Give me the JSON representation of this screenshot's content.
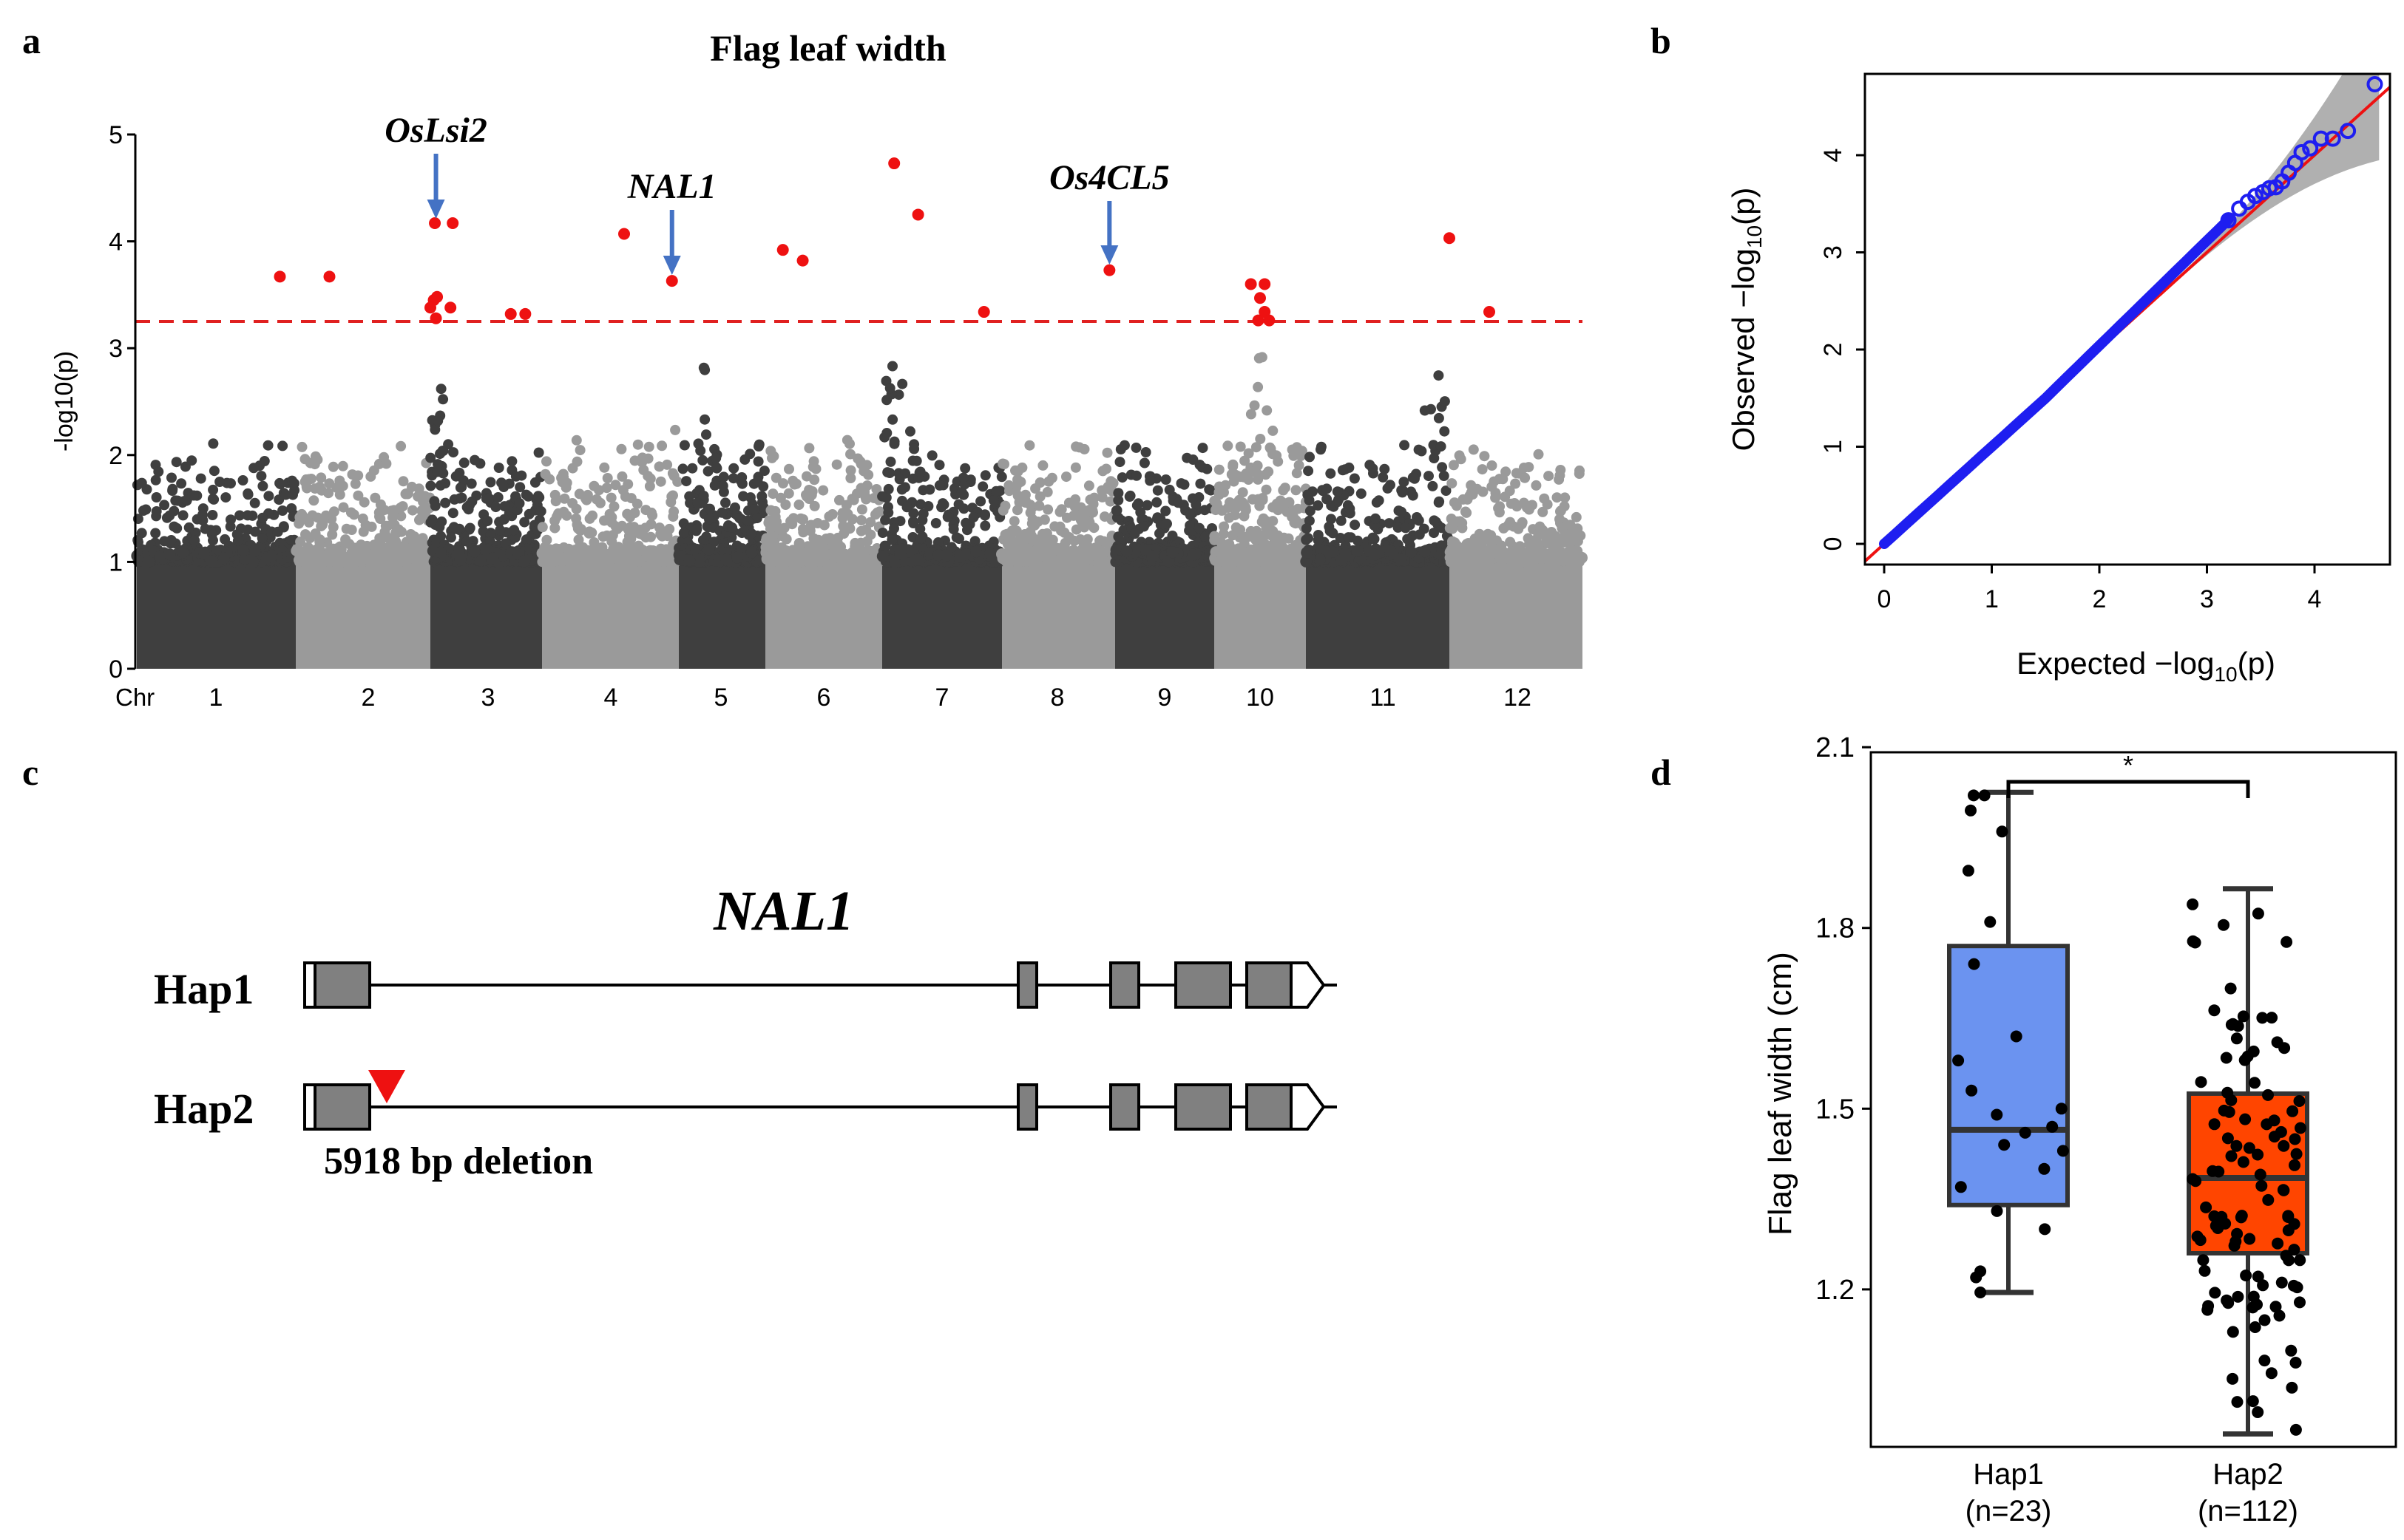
{
  "panel_letters": {
    "a": "a",
    "b": "b",
    "c": "c",
    "d": "d"
  },
  "chart_data": [
    {
      "panel": "a",
      "type": "scatter",
      "title": "Flag leaf width",
      "xlabel": "Chr",
      "ylabel": "-log10(p)",
      "ylim": [
        0,
        5
      ],
      "yticks": [
        "0",
        "1",
        "2",
        "3",
        "4",
        "5"
      ],
      "chromosomes": [
        "1",
        "2",
        "3",
        "4",
        "5",
        "6",
        "7",
        "8",
        "9",
        "10",
        "11",
        "12"
      ],
      "threshold": 3.25,
      "colors": {
        "dark": "#3f3f3f",
        "light": "#9a9a9a",
        "significant": "#ee1111",
        "threshold": "#e02020",
        "arrow": "#4472c4"
      },
      "annotations": [
        {
          "label": "OsLsi2",
          "chr": 3,
          "pos": 0.05
        },
        {
          "label": "NAL1",
          "chr": 4,
          "pos": 0.95
        },
        {
          "label": "Os4CL5",
          "chr": 8,
          "pos": 0.95
        }
      ],
      "significant_points": [
        {
          "chr": 1,
          "pos": 0.9,
          "y": 3.67
        },
        {
          "chr": 2,
          "pos": 0.25,
          "y": 3.67
        },
        {
          "chr": 3,
          "pos": 0.04,
          "y": 4.17
        },
        {
          "chr": 3,
          "pos": 0.2,
          "y": 4.17
        },
        {
          "chr": 3,
          "pos": 0.03,
          "y": 3.45
        },
        {
          "chr": 3,
          "pos": 0.06,
          "y": 3.48
        },
        {
          "chr": 3,
          "pos": 0.0,
          "y": 3.38
        },
        {
          "chr": 3,
          "pos": 0.18,
          "y": 3.38
        },
        {
          "chr": 3,
          "pos": 0.05,
          "y": 3.28
        },
        {
          "chr": 3,
          "pos": 0.72,
          "y": 3.32
        },
        {
          "chr": 3,
          "pos": 0.85,
          "y": 3.32
        },
        {
          "chr": 4,
          "pos": 0.6,
          "y": 4.07
        },
        {
          "chr": 4,
          "pos": 0.95,
          "y": 3.63
        },
        {
          "chr": 6,
          "pos": 0.15,
          "y": 3.92
        },
        {
          "chr": 6,
          "pos": 0.32,
          "y": 3.82
        },
        {
          "chr": 7,
          "pos": 0.1,
          "y": 4.73
        },
        {
          "chr": 7,
          "pos": 0.3,
          "y": 4.25
        },
        {
          "chr": 7,
          "pos": 0.85,
          "y": 3.34
        },
        {
          "chr": 8,
          "pos": 0.95,
          "y": 3.73
        },
        {
          "chr": 10,
          "pos": 0.4,
          "y": 3.6
        },
        {
          "chr": 10,
          "pos": 0.55,
          "y": 3.6
        },
        {
          "chr": 10,
          "pos": 0.5,
          "y": 3.47
        },
        {
          "chr": 10,
          "pos": 0.55,
          "y": 3.34
        },
        {
          "chr": 10,
          "pos": 0.48,
          "y": 3.26
        },
        {
          "chr": 10,
          "pos": 0.6,
          "y": 3.26
        },
        {
          "chr": 11,
          "pos": 1.0,
          "y": 4.03
        },
        {
          "chr": 12,
          "pos": 0.3,
          "y": 3.34
        }
      ]
    },
    {
      "panel": "b",
      "type": "scatter",
      "title": "",
      "xlabel_main": "Expected",
      "ylabel_main": "Observed",
      "axis_stat": "−log",
      "axis_sub": "10",
      "axis_arg": "(p)",
      "xlim": [
        0,
        4.6
      ],
      "ylim": [
        0,
        4.75
      ],
      "xticks": [
        "0",
        "1",
        "2",
        "3",
        "4"
      ],
      "yticks": [
        "0",
        "1",
        "2",
        "3",
        "4"
      ],
      "colors": {
        "points": "#1e1ef0",
        "line": "#ee1111",
        "band": "#b0b0b0"
      },
      "upper_points": [
        {
          "x": 3.2,
          "y": 3.33
        },
        {
          "x": 3.3,
          "y": 3.45
        },
        {
          "x": 3.38,
          "y": 3.52
        },
        {
          "x": 3.45,
          "y": 3.58
        },
        {
          "x": 3.52,
          "y": 3.62
        },
        {
          "x": 3.58,
          "y": 3.66
        },
        {
          "x": 3.64,
          "y": 3.67
        },
        {
          "x": 3.7,
          "y": 3.73
        },
        {
          "x": 3.76,
          "y": 3.82
        },
        {
          "x": 3.82,
          "y": 3.92
        },
        {
          "x": 3.88,
          "y": 4.03
        },
        {
          "x": 3.96,
          "y": 4.07
        },
        {
          "x": 4.06,
          "y": 4.17
        },
        {
          "x": 4.17,
          "y": 4.17
        },
        {
          "x": 4.31,
          "y": 4.25
        },
        {
          "x": 4.56,
          "y": 4.73
        }
      ]
    },
    {
      "panel": "d",
      "type": "box",
      "ylabel": "Flag leaf width (cm)",
      "ylim": [
        0.93,
        2.11
      ],
      "yticks": [
        "1.2",
        "1.5",
        "1.8",
        "2.1"
      ],
      "significance": "*",
      "groups": [
        {
          "name": "Hap1",
          "n_label": "(n=23)",
          "color": "#6b93f0",
          "whisker_low": 1.195,
          "q1": 1.34,
          "median": 1.465,
          "q3": 1.77,
          "whisker_high": 2.025,
          "n": 23
        },
        {
          "name": "Hap2",
          "n_label": "(n=112)",
          "color": "#ff4500",
          "whisker_low": 0.96,
          "q1": 1.26,
          "median": 1.385,
          "q3": 1.525,
          "whisker_high": 1.865,
          "n": 112
        }
      ],
      "hap1_points": [
        2.02,
        2.02,
        1.995,
        1.96,
        1.895,
        1.81,
        1.74,
        1.62,
        1.58,
        1.53,
        1.5,
        1.49,
        1.47,
        1.46,
        1.44,
        1.43,
        1.4,
        1.37,
        1.33,
        1.3,
        1.23,
        1.22,
        1.195
      ]
    }
  ],
  "gene_diagram": {
    "gene_name": "NAL1",
    "haplotypes": [
      {
        "label": "Hap1",
        "has_deletion": false
      },
      {
        "label": "Hap2",
        "has_deletion": true
      }
    ],
    "deletion_label": "5918 bp deletion",
    "colors": {
      "exon": "#808080",
      "marker": "#ee1111"
    }
  }
}
